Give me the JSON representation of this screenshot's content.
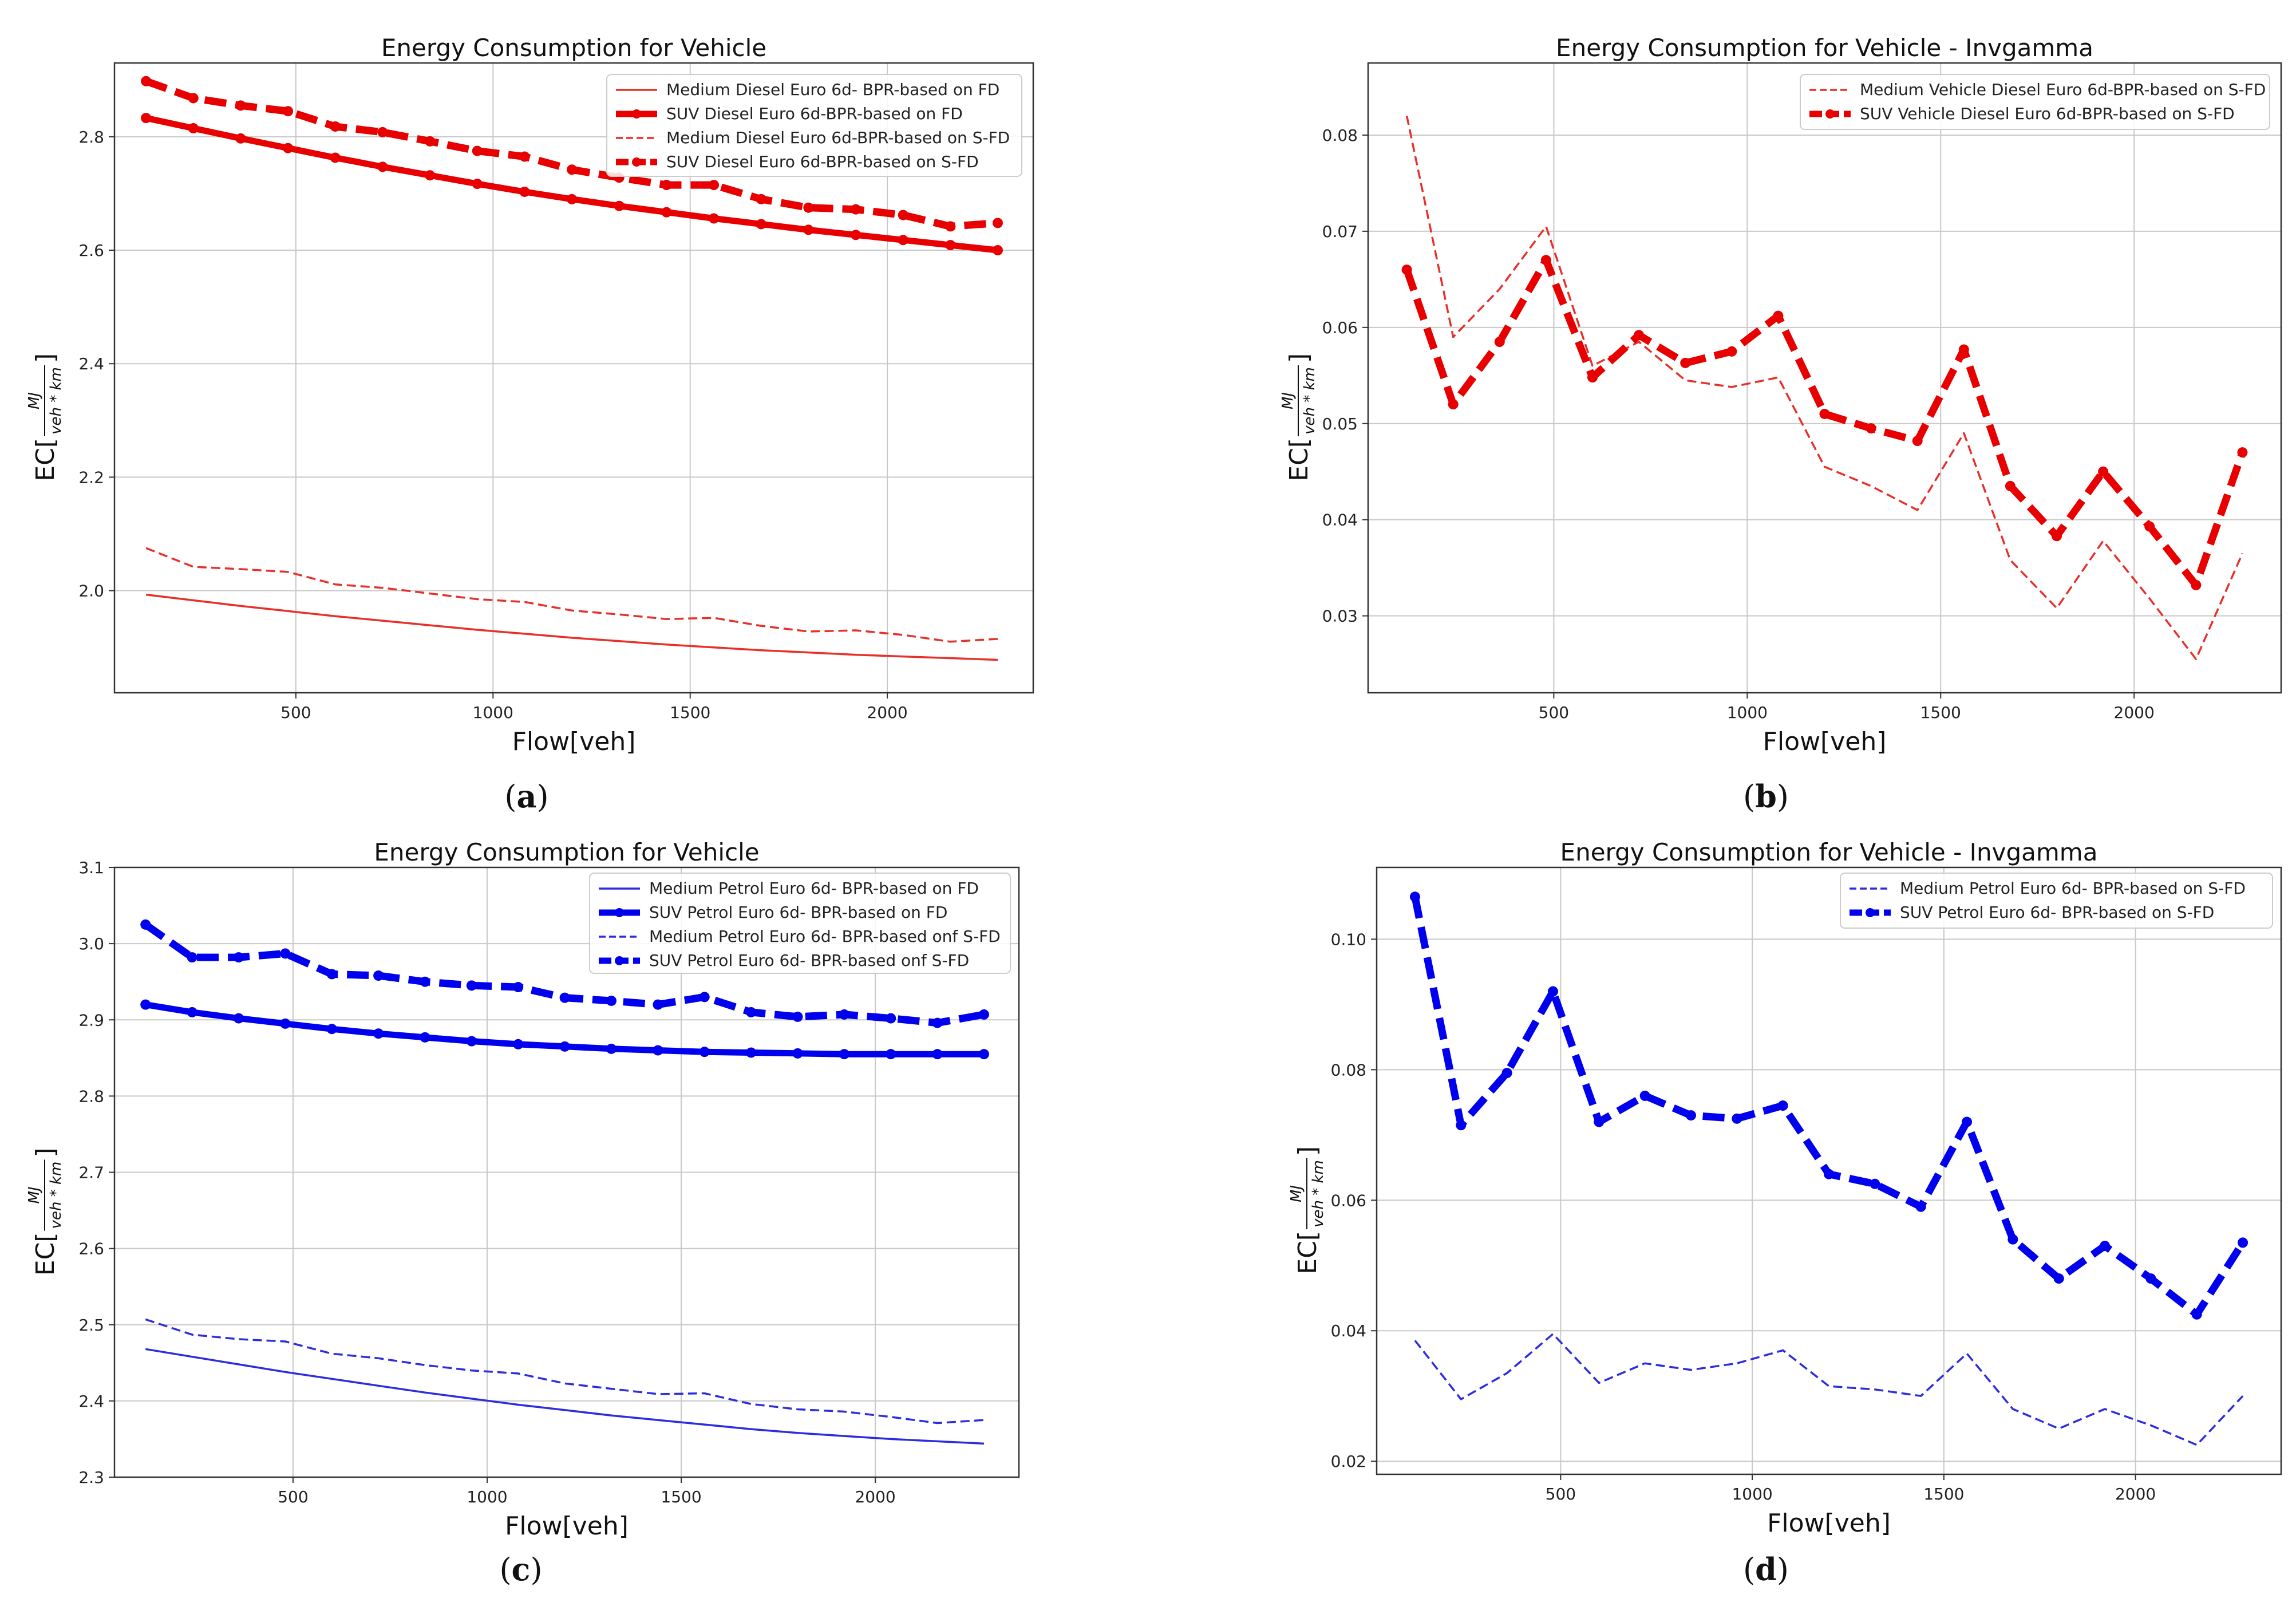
{
  "chart_data": [
    {
      "id": "a",
      "type": "line",
      "title": "Energy Consumption for Vehicle",
      "xlabel": "Flow[veh]",
      "ylabel_prefix": "EC[",
      "ylabel_num": "MJ",
      "ylabel_den": "veh * km",
      "ylabel_suffix": "]",
      "caption_open": "(",
      "caption_letter": "a",
      "caption_close": ")",
      "xlim": [
        40,
        2370
      ],
      "ylim": [
        1.82,
        2.93
      ],
      "xticks": [
        500,
        1000,
        1500,
        2000
      ],
      "xtick_labels": [
        "500",
        "1000",
        "1500",
        "2000"
      ],
      "yticks": [
        2.0,
        2.2,
        2.4,
        2.6,
        2.8
      ],
      "ytick_labels": [
        "2.0",
        "2.2",
        "2.4",
        "2.6",
        "2.8"
      ],
      "grid": true,
      "legend_position": "top-right",
      "x": [
        120,
        240,
        360,
        480,
        600,
        720,
        840,
        960,
        1080,
        1200,
        1320,
        1440,
        1560,
        1680,
        1800,
        1920,
        2040,
        2160,
        2280
      ],
      "series": [
        {
          "name": "Medium Diesel Euro 6d- BPR-based on FD",
          "color": "#e8302a",
          "style": "solid-thin",
          "values": [
            1.993,
            1.983,
            1.973,
            1.964,
            1.955,
            1.947,
            1.939,
            1.931,
            1.924,
            1.917,
            1.911,
            1.905,
            1.9,
            1.895,
            1.891,
            1.887,
            1.884,
            1.881,
            1.878
          ]
        },
        {
          "name": "SUV Diesel Euro 6d-BPR-based on FD",
          "color": "#e80000",
          "style": "solid-thick",
          "values": [
            2.833,
            2.815,
            2.797,
            2.78,
            2.763,
            2.747,
            2.732,
            2.717,
            2.703,
            2.69,
            2.678,
            2.667,
            2.656,
            2.646,
            2.636,
            2.627,
            2.618,
            2.609,
            2.6
          ]
        },
        {
          "name": "Medium Diesel Euro 6d-BPR-based on S-FD",
          "color": "#e8302a",
          "style": "dashed-thin",
          "values": [
            2.075,
            2.042,
            2.038,
            2.033,
            2.011,
            2.005,
            1.995,
            1.985,
            1.98,
            1.965,
            1.958,
            1.95,
            1.952,
            1.938,
            1.928,
            1.93,
            1.922,
            1.91,
            1.915
          ]
        },
        {
          "name": "SUV Diesel Euro 6d-BPR-based on S-FD",
          "color": "#e80000",
          "style": "dashed-thick",
          "values": [
            2.898,
            2.868,
            2.855,
            2.845,
            2.818,
            2.808,
            2.792,
            2.775,
            2.765,
            2.742,
            2.728,
            2.715,
            2.715,
            2.69,
            2.675,
            2.672,
            2.662,
            2.642,
            2.648
          ]
        }
      ]
    },
    {
      "id": "b",
      "type": "line",
      "title": "Energy Consumption for Vehicle - Invgamma",
      "xlabel": "Flow[veh]",
      "ylabel_prefix": "EC[",
      "ylabel_num": "MJ",
      "ylabel_den": "veh * km",
      "ylabel_suffix": "]",
      "caption_open": "(",
      "caption_letter": "b",
      "caption_close": ")",
      "xlim": [
        20,
        2380
      ],
      "ylim": [
        0.022,
        0.0875
      ],
      "xticks": [
        500,
        1000,
        1500,
        2000
      ],
      "xtick_labels": [
        "500",
        "1000",
        "1500",
        "2000"
      ],
      "yticks": [
        0.03,
        0.04,
        0.05,
        0.06,
        0.07,
        0.08
      ],
      "ytick_labels": [
        "0.03",
        "0.04",
        "0.05",
        "0.06",
        "0.07",
        "0.08"
      ],
      "grid": true,
      "legend_position": "top-right",
      "x": [
        120,
        240,
        360,
        480,
        600,
        720,
        840,
        960,
        1080,
        1200,
        1320,
        1440,
        1560,
        1680,
        1800,
        1920,
        2040,
        2160,
        2280
      ],
      "series": [
        {
          "name": "Medium Vehicle Diesel Euro 6d-BPR-based on S-FD",
          "color": "#e8302a",
          "style": "dashed-thin",
          "values": [
            0.082,
            0.059,
            0.064,
            0.0705,
            0.056,
            0.0585,
            0.0545,
            0.0538,
            0.0548,
            0.0455,
            0.0435,
            0.041,
            0.049,
            0.0358,
            0.0308,
            0.0378,
            0.0318,
            0.0255,
            0.0365
          ]
        },
        {
          "name": "SUV Vehicle Diesel Euro 6d-BPR-based on S-FD",
          "color": "#e80000",
          "style": "dashed-thick",
          "values": [
            0.066,
            0.052,
            0.0585,
            0.067,
            0.0548,
            0.0592,
            0.0563,
            0.0575,
            0.0612,
            0.051,
            0.0495,
            0.0482,
            0.0577,
            0.0435,
            0.0383,
            0.045,
            0.0393,
            0.0332,
            0.047
          ]
        }
      ]
    },
    {
      "id": "c",
      "type": "line",
      "title": "Energy Consumption for Vehicle",
      "xlabel": "Flow[veh]",
      "ylabel_prefix": "EC[",
      "ylabel_num": "MJ",
      "ylabel_den": "veh * km",
      "ylabel_suffix": "]",
      "caption_open": "(",
      "caption_letter": "c",
      "caption_close": ")",
      "xlim": [
        40,
        2370
      ],
      "ylim": [
        2.3,
        3.1
      ],
      "xticks": [
        500,
        1000,
        1500,
        2000
      ],
      "xtick_labels": [
        "500",
        "1000",
        "1500",
        "2000"
      ],
      "yticks": [
        2.3,
        2.4,
        2.5,
        2.6,
        2.7,
        2.8,
        2.9,
        3.0,
        3.1
      ],
      "ytick_labels": [
        "2.3",
        "2.4",
        "2.5",
        "2.6",
        "2.7",
        "2.8",
        "2.9",
        "3.0",
        "3.1"
      ],
      "grid": true,
      "legend_position": "top-right",
      "x": [
        120,
        240,
        360,
        480,
        600,
        720,
        840,
        960,
        1080,
        1200,
        1320,
        1440,
        1560,
        1680,
        1800,
        1920,
        2040,
        2160,
        2280
      ],
      "series": [
        {
          "name": "Medium Petrol Euro 6d- BPR-based on FD",
          "color": "#2c2ce0",
          "style": "solid-thin",
          "values": [
            2.468,
            2.458,
            2.448,
            2.438,
            2.429,
            2.42,
            2.411,
            2.403,
            2.395,
            2.388,
            2.381,
            2.375,
            2.369,
            2.363,
            2.358,
            2.354,
            2.35,
            2.347,
            2.344
          ]
        },
        {
          "name": "SUV Petrol Euro 6d- BPR-based on FD",
          "color": "#0000ee",
          "style": "solid-thick",
          "values": [
            2.92,
            2.91,
            2.902,
            2.895,
            2.888,
            2.882,
            2.877,
            2.872,
            2.868,
            2.865,
            2.862,
            2.86,
            2.858,
            2.857,
            2.856,
            2.855,
            2.855,
            2.855,
            2.855
          ]
        },
        {
          "name": "Medium Petrol Euro 6d- BPR-based onf S-FD",
          "color": "#2c2ce0",
          "style": "dashed-thin",
          "values": [
            2.507,
            2.487,
            2.481,
            2.478,
            2.462,
            2.456,
            2.447,
            2.44,
            2.436,
            2.423,
            2.416,
            2.409,
            2.41,
            2.396,
            2.389,
            2.386,
            2.379,
            2.371,
            2.375
          ]
        },
        {
          "name": "SUV Petrol Euro 6d- BPR-based onf S-FD",
          "color": "#0000ee",
          "style": "dashed-thick",
          "values": [
            3.025,
            2.982,
            2.982,
            2.987,
            2.96,
            2.958,
            2.95,
            2.945,
            2.943,
            2.929,
            2.925,
            2.92,
            2.93,
            2.91,
            2.904,
            2.907,
            2.902,
            2.896,
            2.907
          ]
        }
      ]
    },
    {
      "id": "d",
      "type": "line",
      "title": "Energy Consumption for Vehicle - Invgamma",
      "xlabel": "Flow[veh]",
      "ylabel_prefix": "EC[",
      "ylabel_num": "MJ",
      "ylabel_den": "veh * km",
      "ylabel_suffix": "]",
      "caption_open": "(",
      "caption_letter": "d",
      "caption_close": ")",
      "xlim": [
        20,
        2380
      ],
      "ylim": [
        0.018,
        0.111
      ],
      "xticks": [
        500,
        1000,
        1500,
        2000
      ],
      "xtick_labels": [
        "500",
        "1000",
        "1500",
        "2000"
      ],
      "yticks": [
        0.02,
        0.04,
        0.06,
        0.08,
        0.1
      ],
      "ytick_labels": [
        "0.02",
        "0.04",
        "0.06",
        "0.08",
        "0.10"
      ],
      "grid": true,
      "legend_position": "top-right",
      "x": [
        120,
        240,
        360,
        480,
        600,
        720,
        840,
        960,
        1080,
        1200,
        1320,
        1440,
        1560,
        1680,
        1800,
        1920,
        2040,
        2160,
        2280
      ],
      "series": [
        {
          "name": "Medium Petrol Euro 6d- BPR-based on S-FD",
          "color": "#2c2ce0",
          "style": "dashed-thin",
          "values": [
            0.0385,
            0.0295,
            0.0335,
            0.0395,
            0.032,
            0.035,
            0.034,
            0.035,
            0.037,
            0.0315,
            0.031,
            0.03,
            0.0365,
            0.028,
            0.025,
            0.028,
            0.0255,
            0.0225,
            0.03
          ]
        },
        {
          "name": "SUV Petrol Euro 6d- BPR-based on S-FD",
          "color": "#0000ee",
          "style": "dashed-thick",
          "values": [
            0.1065,
            0.0715,
            0.0795,
            0.092,
            0.072,
            0.076,
            0.073,
            0.0725,
            0.0745,
            0.064,
            0.0625,
            0.059,
            0.072,
            0.054,
            0.048,
            0.053,
            0.048,
            0.0425,
            0.0535
          ]
        }
      ]
    }
  ]
}
